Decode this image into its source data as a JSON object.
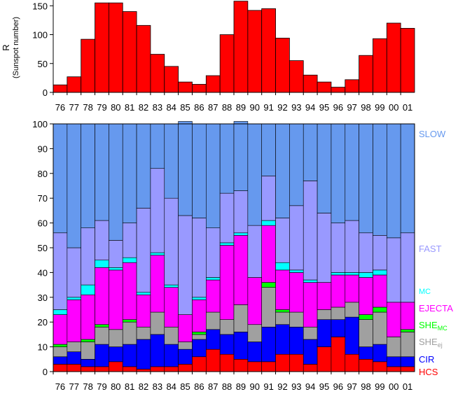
{
  "chart_data": [
    {
      "type": "bar",
      "ylabel": "R",
      "ylabel_sub": "(Sunspot number)",
      "ylim": [
        0,
        160
      ],
      "yticks": [
        0,
        50,
        100,
        150
      ],
      "categories": [
        "76",
        "77",
        "78",
        "79",
        "80",
        "81",
        "82",
        "83",
        "84",
        "85",
        "86",
        "87",
        "88",
        "89",
        "90",
        "91",
        "92",
        "93",
        "94",
        "95",
        "96",
        "97",
        "98",
        "99",
        "00",
        "01"
      ],
      "values": [
        13,
        27,
        92,
        155,
        155,
        140,
        116,
        66,
        45,
        18,
        14,
        29,
        100,
        158,
        142,
        145,
        94,
        55,
        30,
        18,
        9,
        22,
        64,
        93,
        120,
        111
      ],
      "color": "#ff0000"
    },
    {
      "type": "bar",
      "stacked": true,
      "ylim": [
        0,
        100
      ],
      "yticks": [
        0,
        10,
        20,
        30,
        40,
        50,
        60,
        70,
        80,
        90,
        100
      ],
      "categories": [
        "76",
        "77",
        "78",
        "79",
        "80",
        "81",
        "82",
        "83",
        "84",
        "85",
        "86",
        "87",
        "88",
        "89",
        "90",
        "91",
        "92",
        "93",
        "94",
        "95",
        "96",
        "97",
        "98",
        "99",
        "00",
        "01"
      ],
      "series": [
        {
          "name": "HCS",
          "label_main": "HCS",
          "label_sub": "",
          "color": "#ff0000",
          "values": [
            3,
            3,
            2,
            2,
            4,
            2,
            1,
            2,
            2,
            3,
            6,
            9,
            7,
            5,
            4,
            4,
            7,
            7,
            3,
            10,
            14,
            7,
            5,
            4,
            2,
            2
          ]
        },
        {
          "name": "CIR",
          "label_main": "CIR",
          "label_sub": "",
          "color": "#0000ff",
          "values": [
            3,
            5,
            3,
            9,
            6,
            9,
            12,
            13,
            9,
            6,
            7,
            8,
            8,
            11,
            8,
            14,
            12,
            11,
            10,
            11,
            7,
            15,
            5,
            7,
            4,
            4
          ]
        },
        {
          "name": "SHE_ej",
          "label_main": "SHE",
          "label_sub": "ej",
          "color": "#a0a0a0",
          "values": [
            4,
            4,
            7,
            7,
            7,
            9,
            5,
            9,
            7,
            3,
            2,
            7,
            6,
            11,
            7,
            16,
            5,
            6,
            5,
            4,
            5,
            6,
            11,
            13,
            8,
            10
          ]
        },
        {
          "name": "SHE_MC",
          "label_main": "SHE",
          "label_sub": "MC",
          "color": "#00ff00",
          "values": [
            1,
            0,
            1,
            1,
            0,
            1,
            0,
            0,
            0,
            0,
            1,
            0,
            0,
            0,
            0,
            2,
            1,
            0,
            0,
            0,
            0,
            0,
            2,
            2,
            0,
            1
          ]
        },
        {
          "name": "EJECTA",
          "label_main": "EJECTA",
          "label_sub": "",
          "color": "#ff00ff",
          "values": [
            12,
            17,
            18,
            23,
            24,
            23,
            13,
            23,
            16,
            11,
            13,
            13,
            30,
            28,
            19,
            23,
            16,
            16,
            18,
            11,
            13,
            11,
            15,
            13,
            14,
            11
          ]
        },
        {
          "name": "MC",
          "label_main": "MC",
          "label_sub": "",
          "color": "#00ffff",
          "values": [
            2,
            1,
            4,
            3,
            1,
            2,
            1,
            1,
            1,
            0,
            1,
            1,
            1,
            1,
            0,
            2,
            3,
            1,
            1,
            0,
            1,
            1,
            2,
            2,
            0,
            0
          ]
        },
        {
          "name": "FAST",
          "label_main": "FAST",
          "label_sub": "",
          "color": "#9999ff",
          "values": [
            31,
            20,
            23,
            16,
            11,
            14,
            34,
            34,
            35,
            40,
            32,
            20,
            20,
            17,
            21,
            18,
            18,
            26,
            40,
            28,
            20,
            21,
            16,
            14,
            26,
            28
          ]
        },
        {
          "name": "SLOW",
          "label_main": "SLOW",
          "label_sub": "",
          "color": "#6699ee",
          "values": [
            44,
            50,
            42,
            39,
            47,
            40,
            34,
            18,
            30,
            38,
            38,
            42,
            28,
            28,
            41,
            21,
            38,
            33,
            23,
            36,
            40,
            39,
            44,
            45,
            46,
            44
          ]
        }
      ]
    }
  ]
}
